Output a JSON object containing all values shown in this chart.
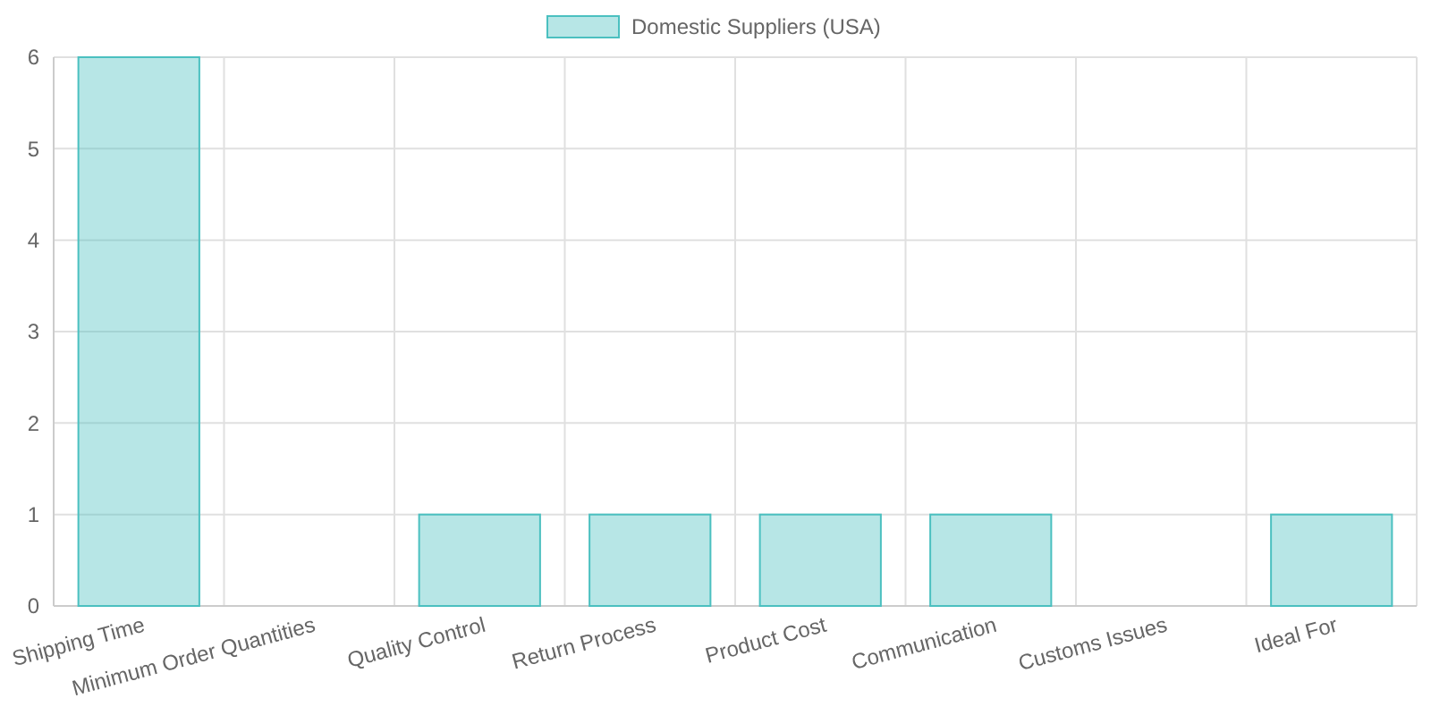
{
  "chart_data": {
    "type": "bar",
    "categories": [
      "Shipping Time",
      "Minimum Order Quantities",
      "Quality Control",
      "Return Process",
      "Product Cost",
      "Communication",
      "Customs Issues",
      "Ideal For"
    ],
    "series": [
      {
        "name": "Domestic Suppliers (USA)",
        "color": "#4bc0c0",
        "values": [
          6,
          0,
          1,
          1,
          1,
          1,
          0,
          1
        ]
      }
    ],
    "ylim": [
      0,
      6
    ],
    "yticks": [
      0,
      1,
      2,
      3,
      4,
      5,
      6
    ],
    "grid": true,
    "legend": "top"
  }
}
